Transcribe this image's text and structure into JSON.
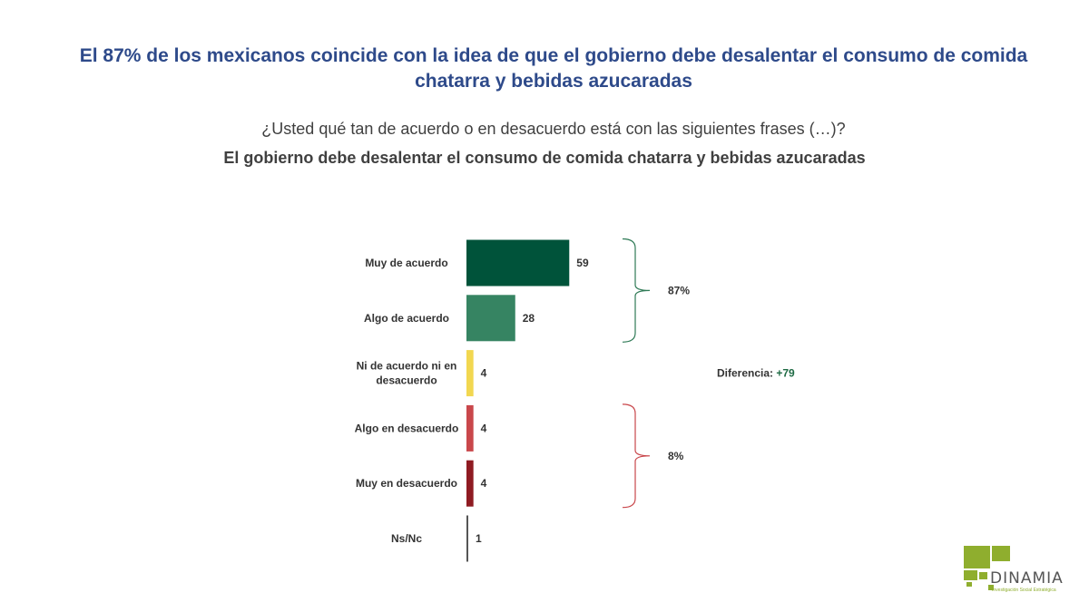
{
  "header": {
    "headline": "El 87% de los mexicanos coincide con la idea de que el gobierno debe desalentar el consumo de comida chatarra y bebidas azucaradas",
    "question": "¿Usted qué tan de acuerdo o en desacuerdo está con las siguientes frases (…)?",
    "statement": "El gobierno debe desalentar el consumo de comida chatarra y bebidas azucaradas"
  },
  "chart_data": {
    "type": "bar",
    "orientation": "horizontal",
    "categories": [
      [
        "Muy de acuerdo"
      ],
      [
        "Algo de acuerdo"
      ],
      [
        "Ni de acuerdo ni en",
        "desacuerdo"
      ],
      [
        "Algo en desacuerdo"
      ],
      [
        "Muy en desacuerdo"
      ],
      [
        "Ns/Nc"
      ]
    ],
    "values": [
      59,
      28,
      4,
      4,
      4,
      1
    ],
    "colors": [
      "#00533a",
      "#368462",
      "#f2d750",
      "#c9474b",
      "#8f1b22",
      "#555555"
    ],
    "groups": [
      {
        "label": "87%",
        "rows": [
          0,
          1
        ],
        "bracket_color": "#2f7a56"
      },
      {
        "label": "8%",
        "rows": [
          3,
          4
        ],
        "bracket_color": "#c9474b"
      }
    ],
    "difference": {
      "label": "Diferencia:",
      "value": "+79"
    },
    "grid": false
  },
  "logo": {
    "name": "DINAMIA",
    "tagline": "Investigación Social Estratégica",
    "color": "#8fae2e"
  }
}
